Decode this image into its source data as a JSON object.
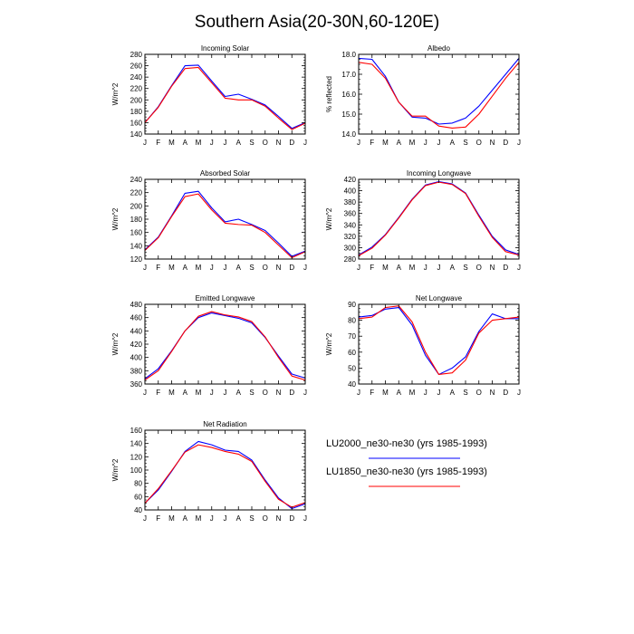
{
  "figure_title": "Southern Asia(20-30N,60-120E)",
  "colors": {
    "LU2000": "#0000ff",
    "LU1850": "#ff0000",
    "axis": "#000000"
  },
  "legend": [
    {
      "label": "LU2000_ne30-ne30 (yrs 1985-1993)",
      "color": "#0000ff"
    },
    {
      "label": "LU1850_ne30-ne30 (yrs 1985-1993)",
      "color": "#ff0000"
    }
  ],
  "chart_data": [
    {
      "type": "line",
      "title": "Incoming Solar",
      "ylabel": "W/m^2",
      "categories": [
        "J",
        "F",
        "M",
        "A",
        "M",
        "J",
        "J",
        "A",
        "S",
        "O",
        "N",
        "D",
        "J"
      ],
      "ylim": [
        140,
        280
      ],
      "yticks": [
        "140",
        "160",
        "180",
        "200",
        "220",
        "240",
        "260",
        "280"
      ],
      "series": [
        {
          "name": "LU2000_ne30-ne30 (yrs 1985-1993)",
          "values": [
            160,
            188,
            225,
            260,
            261,
            233,
            206,
            210,
            201,
            191,
            171,
            150,
            160
          ]
        },
        {
          "name": "LU1850_ne30-ne30 (yrs 1985-1993)",
          "values": [
            160,
            187,
            224,
            255,
            257,
            230,
            203,
            200,
            200,
            189,
            168,
            148,
            159
          ]
        }
      ]
    },
    {
      "type": "line",
      "title": "Albedo",
      "ylabel": "% reflected",
      "categories": [
        "J",
        "F",
        "M",
        "A",
        "M",
        "J",
        "J",
        "A",
        "S",
        "O",
        "N",
        "D",
        "J"
      ],
      "ylim": [
        14.0,
        18.0
      ],
      "yticks": [
        "14.0",
        "15.0",
        "16.0",
        "17.0",
        "18.0"
      ],
      "series": [
        {
          "name": "LU2000_ne30-ne30 (yrs 1985-1993)",
          "values": [
            17.8,
            17.75,
            16.9,
            15.6,
            14.85,
            14.8,
            14.5,
            14.55,
            14.8,
            15.4,
            16.2,
            17.0,
            17.8
          ]
        },
        {
          "name": "LU1850_ne30-ne30 (yrs 1985-1993)",
          "values": [
            17.6,
            17.5,
            16.8,
            15.6,
            14.9,
            14.9,
            14.4,
            14.3,
            14.35,
            15.0,
            15.9,
            16.8,
            17.6
          ]
        }
      ]
    },
    {
      "type": "line",
      "title": "Absorbed Solar",
      "ylabel": "W/m^2",
      "categories": [
        "J",
        "F",
        "M",
        "A",
        "M",
        "J",
        "J",
        "A",
        "S",
        "O",
        "N",
        "D",
        "J"
      ],
      "ylim": [
        120,
        240
      ],
      "yticks": [
        "120",
        "140",
        "160",
        "180",
        "200",
        "220",
        "240"
      ],
      "series": [
        {
          "name": "LU2000_ne30-ne30 (yrs 1985-1993)",
          "values": [
            134,
            153,
            185,
            219,
            222,
            197,
            176,
            180,
            172,
            163,
            144,
            124,
            132
          ]
        },
        {
          "name": "LU1850_ne30-ne30 (yrs 1985-1993)",
          "values": [
            133,
            152,
            184,
            214,
            218,
            194,
            174,
            172,
            171,
            160,
            141,
            122,
            131
          ]
        }
      ]
    },
    {
      "type": "line",
      "title": "Incoming Longwave",
      "ylabel": "W/m^2",
      "categories": [
        "J",
        "F",
        "M",
        "A",
        "M",
        "J",
        "J",
        "A",
        "S",
        "O",
        "N",
        "D",
        "J"
      ],
      "ylim": [
        280,
        420
      ],
      "yticks": [
        "280",
        "300",
        "320",
        "340",
        "360",
        "380",
        "400",
        "420"
      ],
      "series": [
        {
          "name": "LU2000_ne30-ne30 (yrs 1985-1993)",
          "values": [
            287,
            301,
            323,
            353,
            385,
            410,
            416,
            412,
            396,
            357,
            320,
            296,
            288
          ]
        },
        {
          "name": "LU1850_ne30-ne30 (yrs 1985-1993)",
          "values": [
            286,
            299,
            322,
            352,
            384,
            409,
            415,
            411,
            395,
            355,
            318,
            293,
            287
          ]
        }
      ]
    },
    {
      "type": "line",
      "title": "Emitted Longwave",
      "ylabel": "W/m^2",
      "categories": [
        "J",
        "F",
        "M",
        "A",
        "M",
        "J",
        "J",
        "A",
        "S",
        "O",
        "N",
        "D",
        "J"
      ],
      "ylim": [
        360,
        480
      ],
      "yticks": [
        "360",
        "380",
        "400",
        "420",
        "440",
        "460",
        "480"
      ],
      "series": [
        {
          "name": "LU2000_ne30-ne30 (yrs 1985-1993)",
          "values": [
            368,
            383,
            410,
            440,
            460,
            467,
            463,
            459,
            452,
            430,
            402,
            375,
            369
          ]
        },
        {
          "name": "LU1850_ne30-ne30 (yrs 1985-1993)",
          "values": [
            366,
            380,
            409,
            440,
            462,
            469,
            464,
            461,
            454,
            431,
            400,
            372,
            366
          ]
        }
      ]
    },
    {
      "type": "line",
      "title": "Net Longwave",
      "ylabel": "W/m^2",
      "categories": [
        "J",
        "F",
        "M",
        "A",
        "M",
        "J",
        "J",
        "A",
        "S",
        "O",
        "N",
        "D",
        "J"
      ],
      "ylim": [
        40,
        90
      ],
      "yticks": [
        "40",
        "50",
        "60",
        "70",
        "80",
        "90"
      ],
      "series": [
        {
          "name": "LU2000_ne30-ne30 (yrs 1985-1993)",
          "values": [
            82,
            83,
            87,
            88,
            77,
            58,
            46,
            50,
            57,
            73,
            84,
            81,
            81
          ]
        },
        {
          "name": "LU1850_ne30-ne30 (yrs 1985-1993)",
          "values": [
            81,
            82,
            88,
            89,
            79,
            60,
            46,
            47,
            55,
            72,
            80,
            81,
            82
          ]
        }
      ]
    },
    {
      "type": "line",
      "title": "Net Radiation",
      "ylabel": "W/m^2",
      "categories": [
        "J",
        "F",
        "M",
        "A",
        "M",
        "J",
        "J",
        "A",
        "S",
        "O",
        "N",
        "D",
        "J"
      ],
      "ylim": [
        40,
        160
      ],
      "yticks": [
        "40",
        "60",
        "80",
        "100",
        "120",
        "140",
        "160"
      ],
      "series": [
        {
          "name": "LU2000_ne30-ne30 (yrs 1985-1993)",
          "values": [
            50,
            70,
            98,
            128,
            143,
            138,
            130,
            128,
            115,
            85,
            58,
            42,
            49
          ]
        },
        {
          "name": "LU1850_ne30-ne30 (yrs 1985-1993)",
          "values": [
            50,
            72,
            99,
            127,
            138,
            134,
            128,
            124,
            113,
            83,
            56,
            44,
            51
          ]
        }
      ]
    }
  ]
}
